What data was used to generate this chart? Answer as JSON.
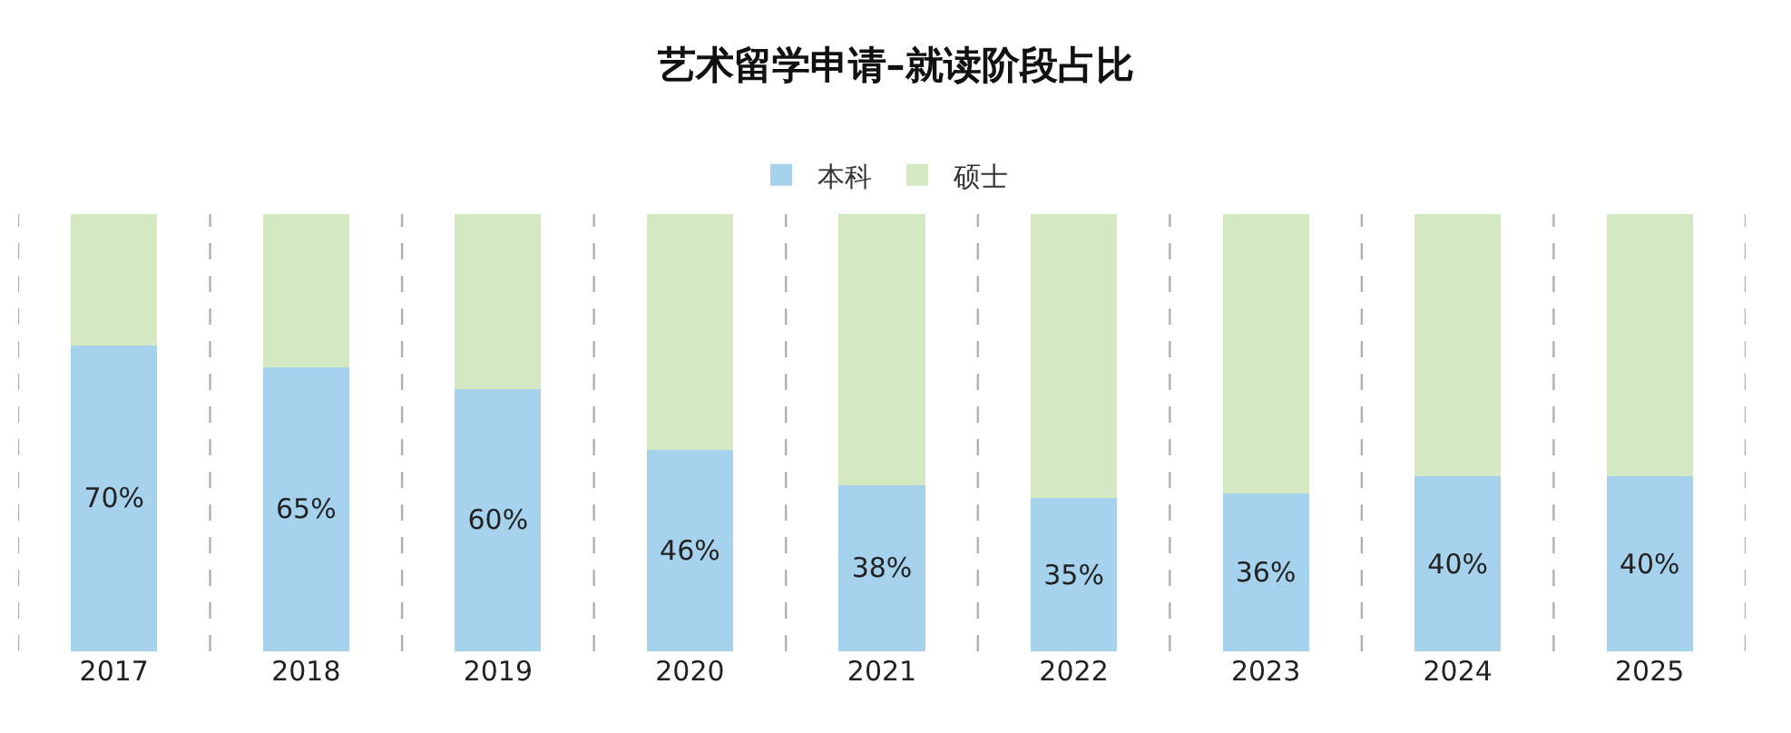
{
  "chart_data": {
    "type": "bar",
    "title": "艺术留学申请–就读阶段占比",
    "ylim": [
      0,
      100
    ],
    "tick_labels": "x",
    "stacked": true,
    "legend": "top",
    "grid": "x",
    "line_style": "dashed",
    "categories": [
      "2017",
      "2018",
      "2019",
      "2020",
      "2021",
      "2022",
      "2023",
      "2024",
      "2025"
    ],
    "series": [
      {
        "name": "本科",
        "color": "#a6d2ee",
        "values": [
          70,
          65,
          60,
          46,
          38,
          35,
          36,
          40,
          40
        ],
        "value_labels": [
          "70%",
          "65%",
          "60%",
          "46%",
          "38%",
          "35%",
          "36%",
          "40%",
          "40%"
        ]
      },
      {
        "name": "硕士",
        "color": "#d5e8c4",
        "values": [
          30,
          35,
          40,
          54,
          62,
          65,
          64,
          60,
          60
        ]
      }
    ]
  }
}
